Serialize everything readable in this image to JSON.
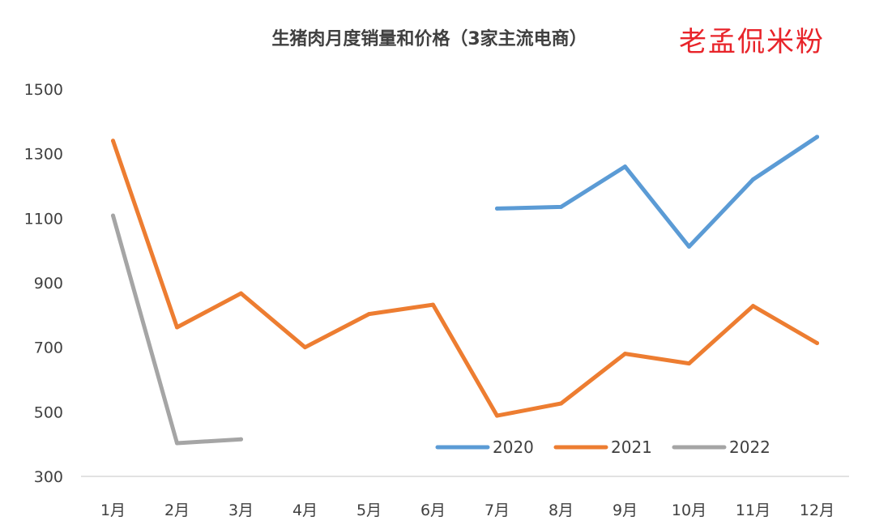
{
  "watermark": "老孟侃米粉",
  "chart_data": {
    "type": "line",
    "title": "生猪肉月度销量和价格（3家主流电商）",
    "xlabel": "",
    "ylabel": "",
    "categories": [
      "1月",
      "2月",
      "3月",
      "4月",
      "5月",
      "6月",
      "7月",
      "8月",
      "9月",
      "10月",
      "11月",
      "12月"
    ],
    "ylim": [
      300,
      1500
    ],
    "yticks": [
      300,
      500,
      700,
      900,
      1100,
      1300,
      1500
    ],
    "grid": false,
    "legend_position": "bottom-right",
    "series": [
      {
        "name": "2020",
        "color": "#5b9bd5",
        "values": [
          null,
          null,
          null,
          null,
          null,
          null,
          1130,
          1135,
          1260,
          1012,
          1220,
          1352
        ]
      },
      {
        "name": "2021",
        "color": "#ed7d31",
        "values": [
          1340,
          762,
          867,
          700,
          803,
          832,
          488,
          526,
          680,
          650,
          828,
          713
        ]
      },
      {
        "name": "2022",
        "color": "#a5a5a5",
        "values": [
          1108,
          403,
          415,
          null,
          null,
          null,
          null,
          null,
          null,
          null,
          null,
          null
        ]
      }
    ]
  }
}
